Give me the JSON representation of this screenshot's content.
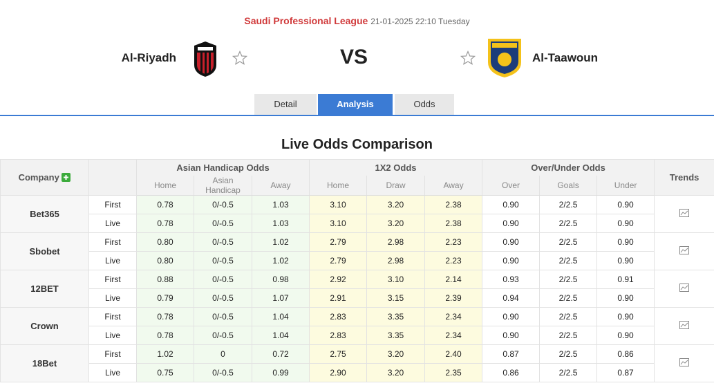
{
  "header": {
    "league": "Saudi Professional League",
    "datetime": "21-01-2025 22:10 Tuesday",
    "home_team": "Al-Riyadh",
    "vs": "VS",
    "away_team": "Al-Taawoun"
  },
  "tabs": [
    "Detail",
    "Analysis",
    "Odds"
  ],
  "section_title": "Live Odds Comparison",
  "table": {
    "headers": {
      "company": "Company",
      "asian_handicap": "Asian Handicap Odds",
      "x12": "1X2 Odds",
      "over_under": "Over/Under Odds",
      "trends": "Trends"
    },
    "subheaders": [
      "Home",
      "Asian Handicap",
      "Away",
      "Home",
      "Draw",
      "Away",
      "Over",
      "Goals",
      "Under"
    ],
    "companies": [
      {
        "name": "Bet365",
        "rows": [
          {
            "label": "First",
            "values": [
              "0.78",
              "0/-0.5",
              "1.03",
              "3.10",
              "3.20",
              "2.38",
              "0.90",
              "2/2.5",
              "0.90"
            ]
          },
          {
            "label": "Live",
            "values": [
              "0.78",
              "0/-0.5",
              "1.03",
              "3.10",
              "3.20",
              "2.38",
              "0.90",
              "2/2.5",
              "0.90"
            ]
          }
        ]
      },
      {
        "name": "Sbobet",
        "rows": [
          {
            "label": "First",
            "values": [
              "0.80",
              "0/-0.5",
              "1.02",
              "2.79",
              "2.98",
              "2.23",
              "0.90",
              "2/2.5",
              "0.90"
            ]
          },
          {
            "label": "Live",
            "values": [
              "0.80",
              "0/-0.5",
              "1.02",
              "2.79",
              "2.98",
              "2.23",
              "0.90",
              "2/2.5",
              "0.90"
            ]
          }
        ]
      },
      {
        "name": "12BET",
        "rows": [
          {
            "label": "First",
            "values": [
              "0.88",
              "0/-0.5",
              "0.98",
              "2.92",
              "3.10",
              "2.14",
              "0.93",
              "2/2.5",
              "0.91"
            ]
          },
          {
            "label": "Live",
            "values": [
              "0.79",
              "0/-0.5",
              "1.07",
              "2.91",
              "3.15",
              "2.39",
              "0.94",
              "2/2.5",
              "0.90"
            ]
          }
        ]
      },
      {
        "name": "Crown",
        "rows": [
          {
            "label": "First",
            "values": [
              "0.78",
              "0/-0.5",
              "1.04",
              "2.83",
              "3.35",
              "2.34",
              "0.90",
              "2/2.5",
              "0.90"
            ]
          },
          {
            "label": "Live",
            "values": [
              "0.78",
              "0/-0.5",
              "1.04",
              "2.83",
              "3.35",
              "2.34",
              "0.90",
              "2/2.5",
              "0.90"
            ]
          }
        ]
      },
      {
        "name": "18Bet",
        "rows": [
          {
            "label": "First",
            "values": [
              "1.02",
              "0",
              "0.72",
              "2.75",
              "3.20",
              "2.40",
              "0.87",
              "2/2.5",
              "0.86"
            ]
          },
          {
            "label": "Live",
            "values": [
              "0.75",
              "0/-0.5",
              "0.99",
              "2.90",
              "3.20",
              "2.35",
              "0.86",
              "2/2.5",
              "0.87"
            ]
          }
        ]
      }
    ]
  }
}
